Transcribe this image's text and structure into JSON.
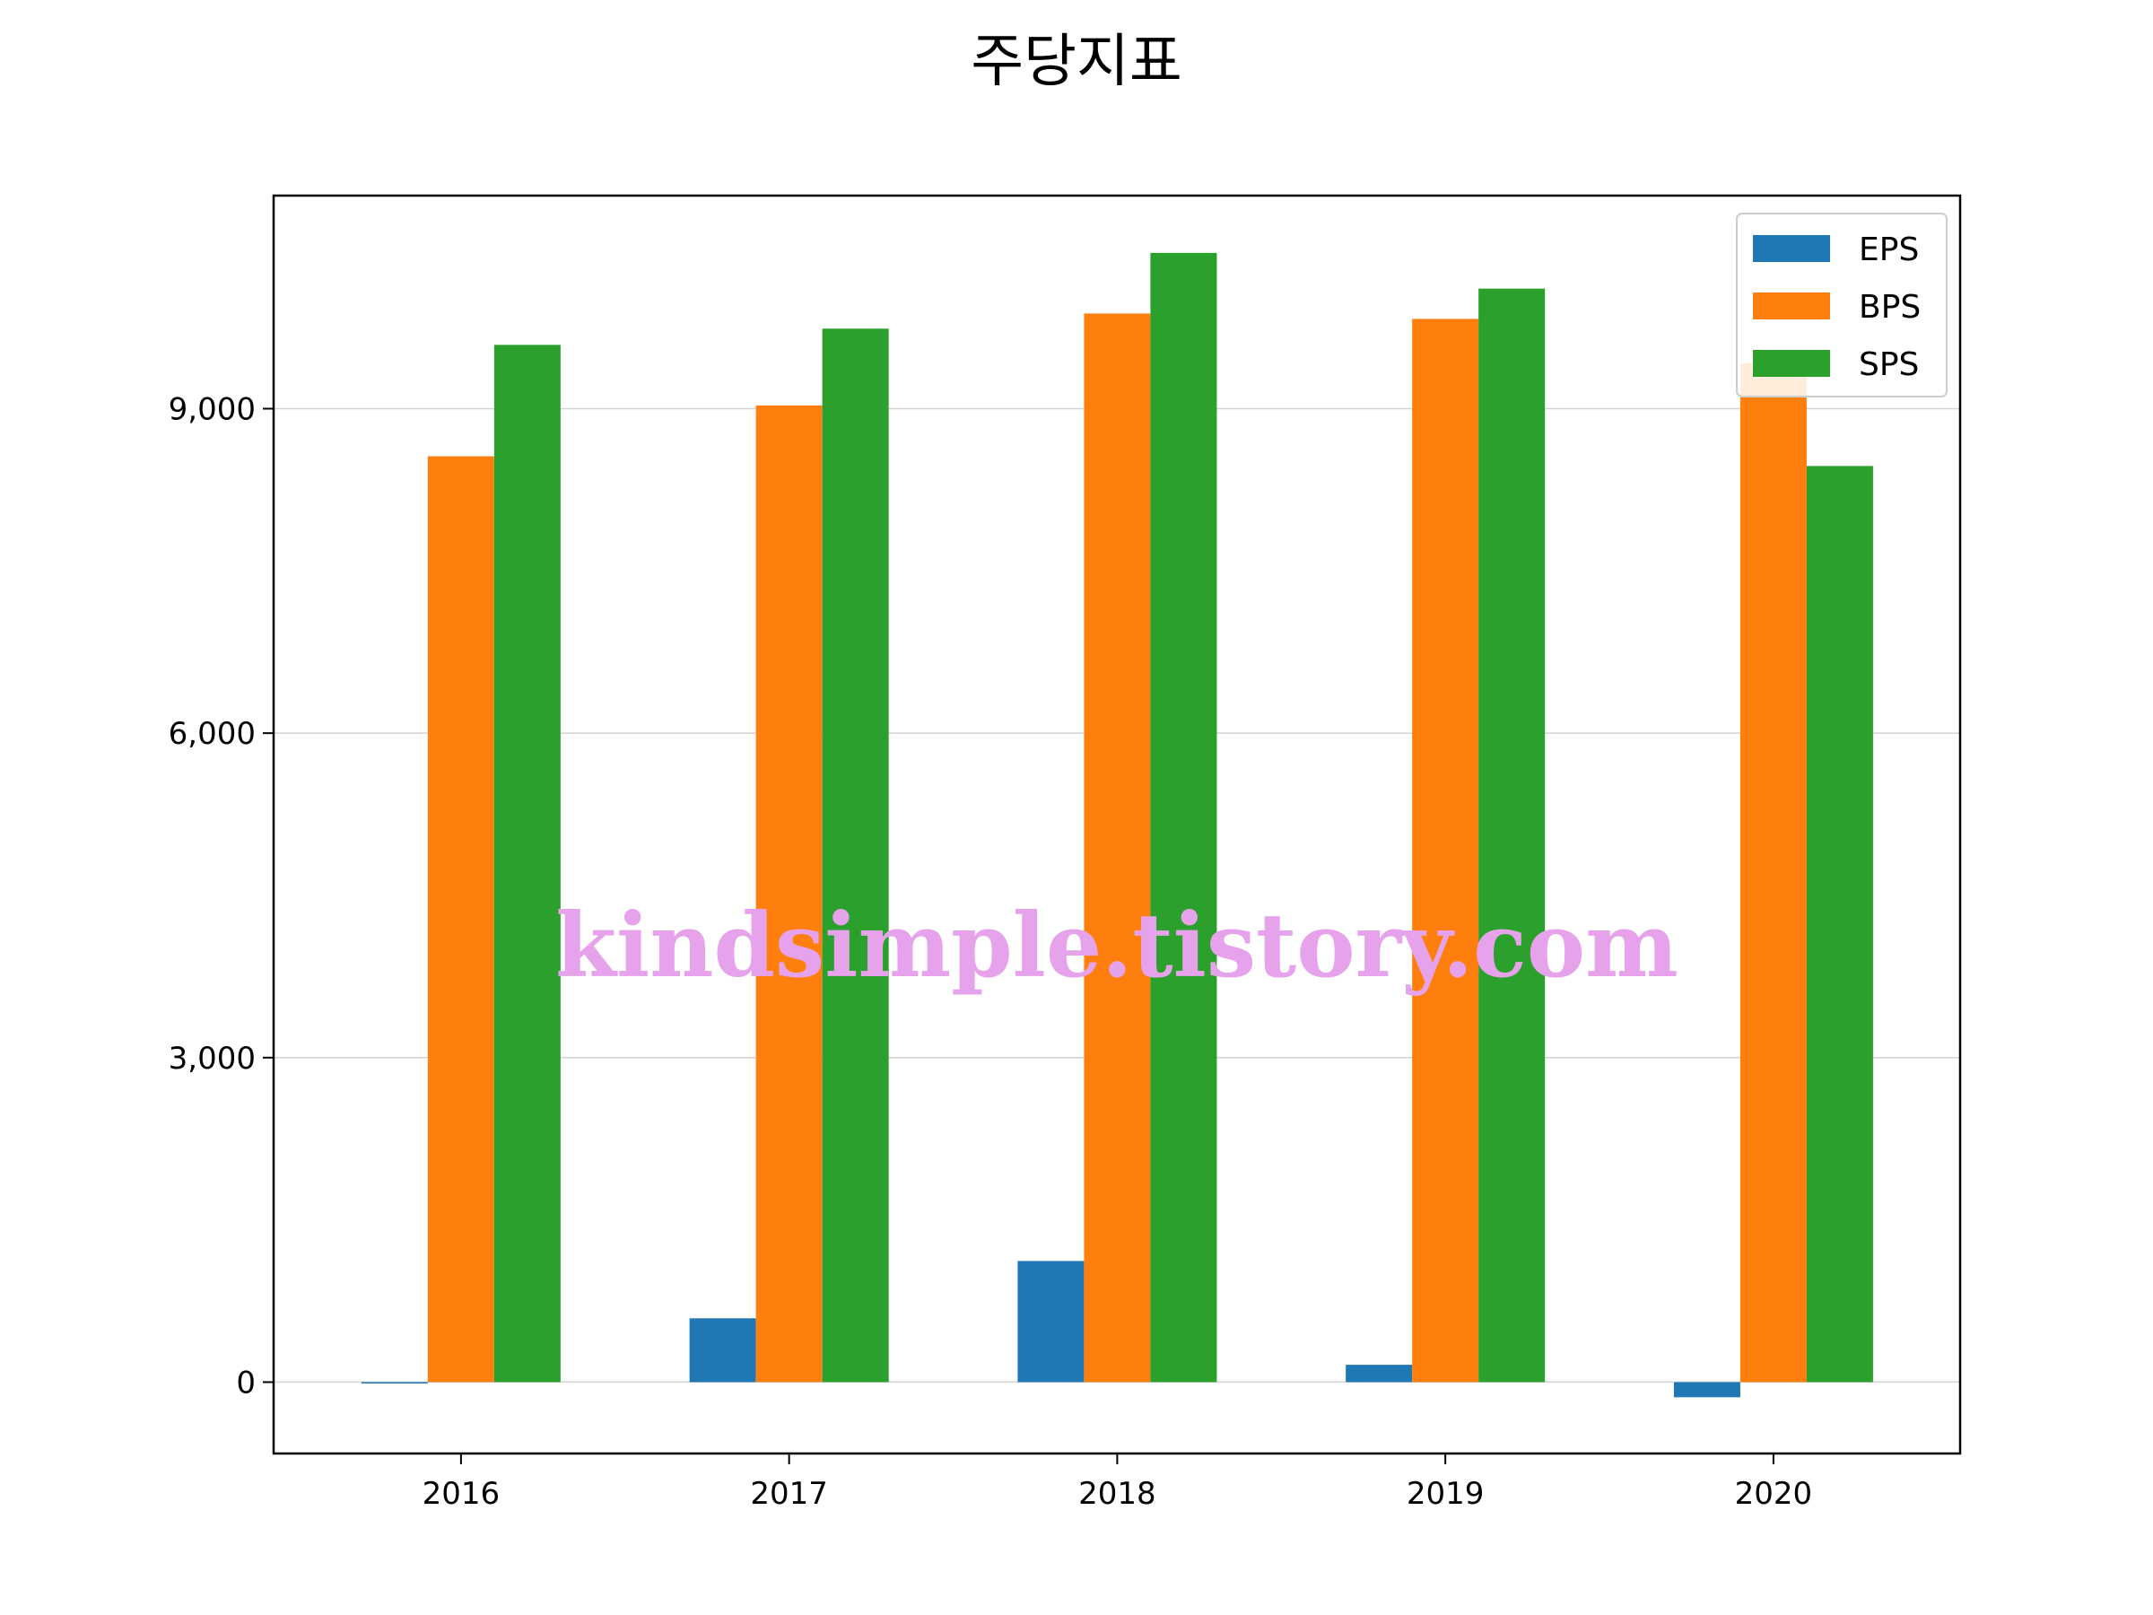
{
  "chart_data": {
    "type": "bar",
    "title": "주당지표",
    "categories": [
      "2016",
      "2017",
      "2018",
      "2019",
      "2020"
    ],
    "series": [
      {
        "name": "EPS",
        "color": "#1f77b4",
        "values": [
          -10,
          590,
          1120,
          160,
          -140
        ]
      },
      {
        "name": "BPS",
        "color": "#ff7f0e",
        "values": [
          8560,
          9030,
          9880,
          9830,
          9420
        ]
      },
      {
        "name": "SPS",
        "color": "#2ca02c",
        "values": [
          9590,
          9740,
          10440,
          10110,
          8470
        ]
      }
    ],
    "yticks": [
      0,
      3000,
      6000,
      9000
    ],
    "ytick_labels": [
      "0",
      "3,000",
      "6,000",
      "9,000"
    ],
    "ylim": [
      -660,
      10970
    ],
    "grid": "y",
    "legend_position": "top-right",
    "xlabel": "",
    "ylabel": ""
  },
  "watermark": "kindsimple.tistory.com"
}
